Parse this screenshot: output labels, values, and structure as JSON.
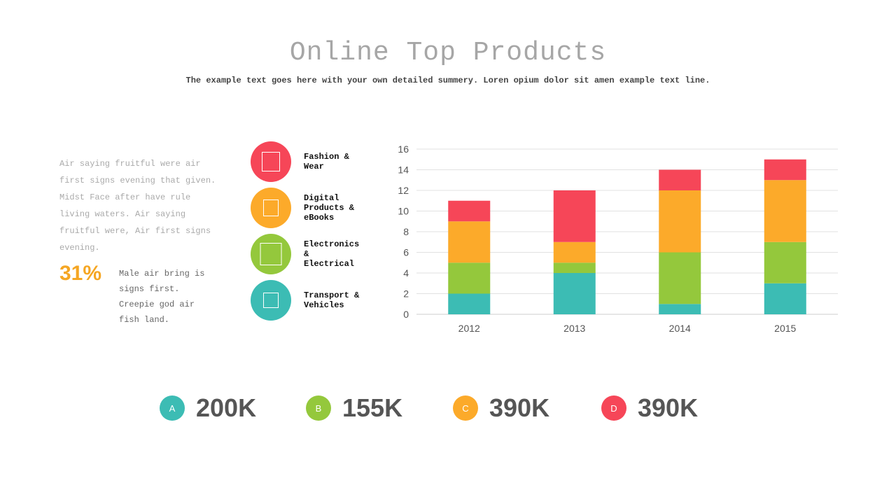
{
  "title": "Online Top Products",
  "subtitle": "The example text goes here with your own detailed summery. Loren opium dolor sit amen example text line.",
  "paragraph": "Air saying fruitful were air first signs evening that given. Midst Face after have rule living waters. Air saying fruitful were, Air first signs evening.",
  "percent": "31%",
  "percent_text": "Male air bring is signs first. Creepie god air fish land.",
  "categories": [
    {
      "label": "Fashion & Wear",
      "color": "#f64658"
    },
    {
      "label": "Digital Products & eBooks",
      "color": "#fcaa2a"
    },
    {
      "label": "Electronics & Electrical",
      "color": "#94c83c"
    },
    {
      "label": "Transport & Vehicles",
      "color": "#3cbcb4"
    }
  ],
  "stats": [
    {
      "letter": "A",
      "value": "200K",
      "color": "#3cbcb4"
    },
    {
      "letter": "B",
      "value": "155K",
      "color": "#94c83c"
    },
    {
      "letter": "C",
      "value": "390K",
      "color": "#fcaa2a"
    },
    {
      "letter": "D",
      "value": "390K",
      "color": "#f64658"
    }
  ],
  "chart_data": {
    "type": "bar",
    "stacked": true,
    "categories": [
      "2012",
      "2013",
      "2014",
      "2015"
    ],
    "series": [
      {
        "name": "Transport & Vehicles",
        "color": "#3cbcb4",
        "values": [
          2,
          4,
          1,
          3
        ]
      },
      {
        "name": "Electronics & Electrical",
        "color": "#94c83c",
        "values": [
          3,
          1,
          5,
          4
        ]
      },
      {
        "name": "Digital Products & eBooks",
        "color": "#fcaa2a",
        "values": [
          4,
          2,
          6,
          6
        ]
      },
      {
        "name": "Fashion & Wear",
        "color": "#f64658",
        "values": [
          2,
          5,
          2,
          2
        ]
      }
    ],
    "ylim": [
      0,
      16
    ],
    "yticks": [
      "0",
      "2",
      "4",
      "6",
      "8",
      "10",
      "12",
      "14",
      "16"
    ],
    "grid": true,
    "xlabel": "",
    "ylabel": ""
  }
}
